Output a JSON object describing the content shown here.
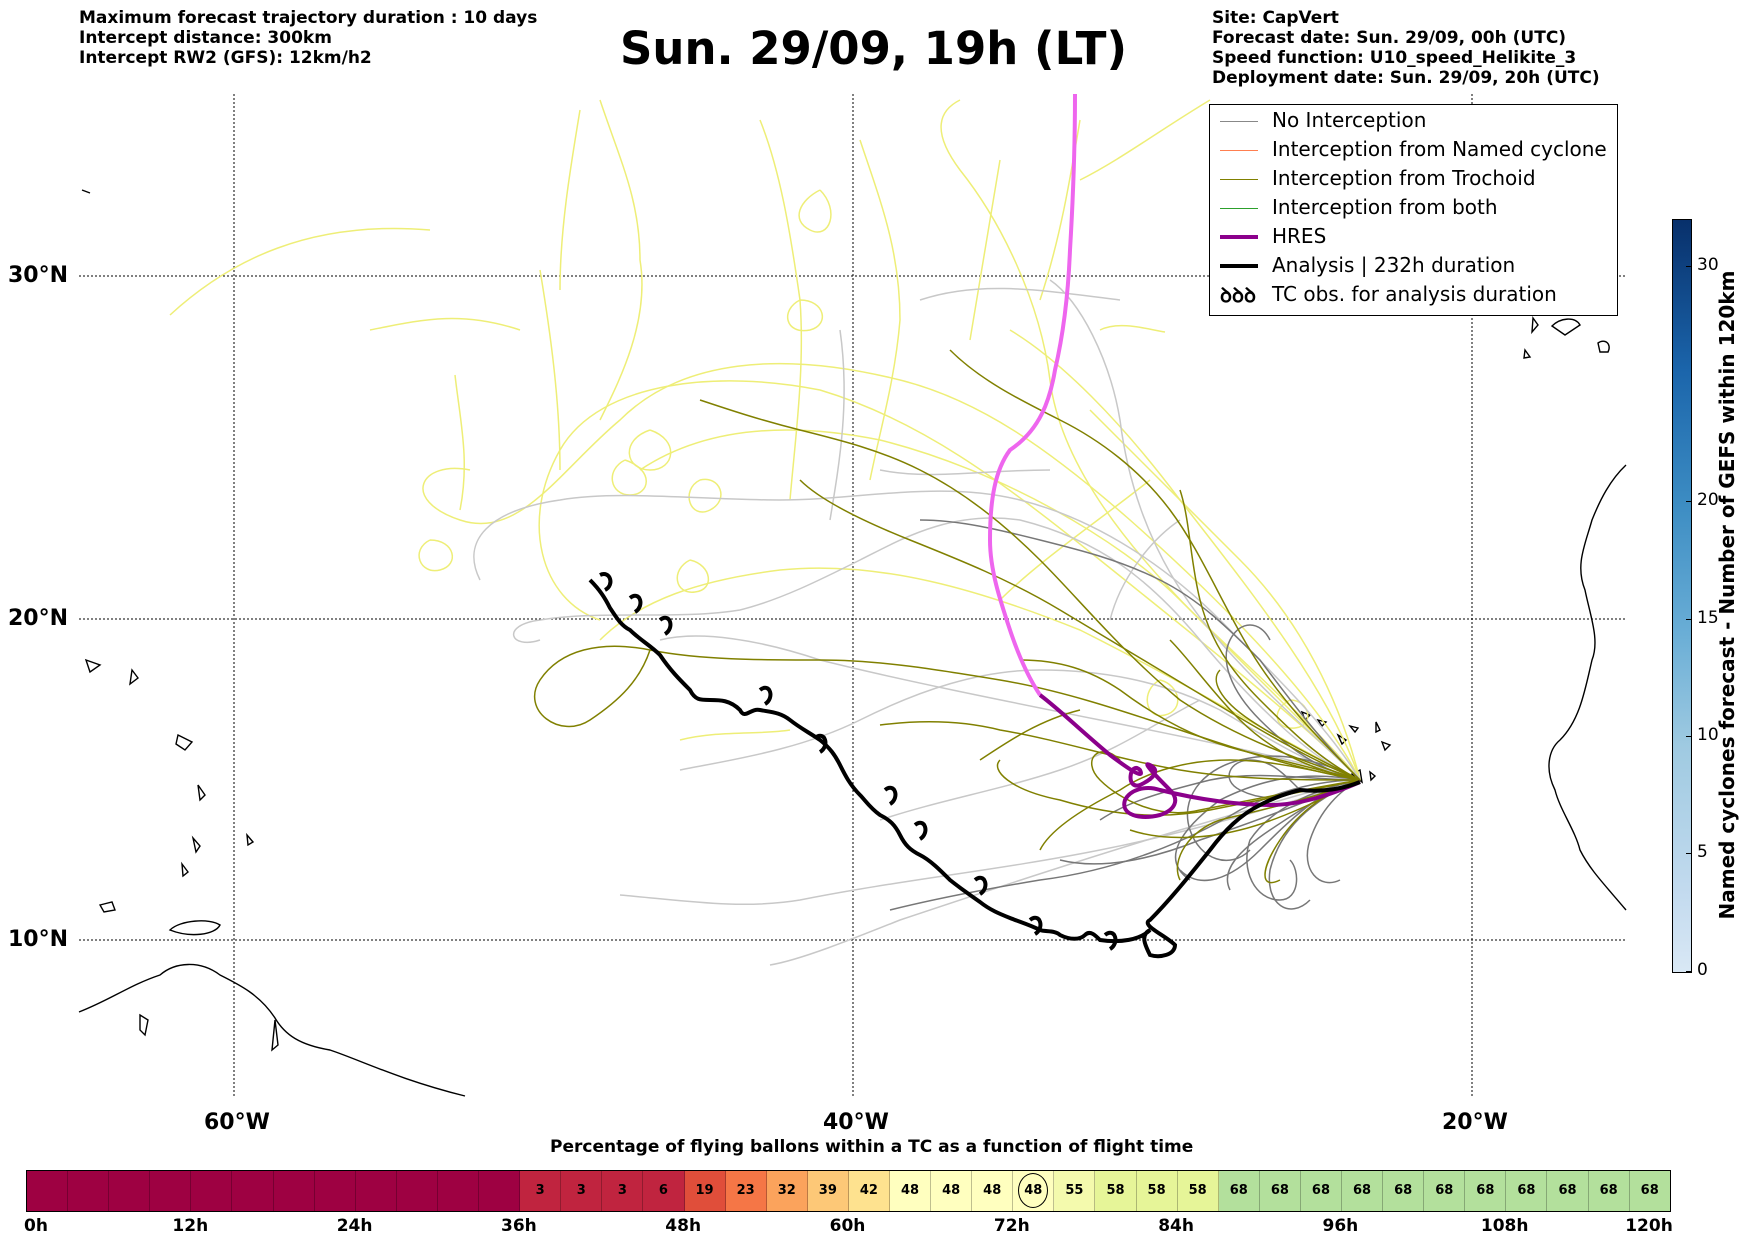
{
  "header_left": [
    "Maximum forecast trajectory duration : 10 days",
    "Intercept distance: 300km",
    "Intercept RW2 (GFS):  12km/h2"
  ],
  "title": "Sun. 29/09, 19h (LT)",
  "header_right": [
    "Site: CapVert",
    "Forecast date: Sun. 29/09, 00h (UTC)",
    "Speed function: U10_speed_Helikite_3",
    "Deployment date: Sun. 29/09, 20h (UTC)"
  ],
  "lat_labels": [
    "30°N",
    "20°N",
    "10°N"
  ],
  "lon_labels": [
    "60°W",
    "40°W",
    "20°W"
  ],
  "legend": [
    {
      "label": "No Interception",
      "color": "#888888",
      "width": 1.5
    },
    {
      "label": "Interception from Named cyclone",
      "color": "#ff7f50",
      "width": 1.5
    },
    {
      "label": "Interception from Trochoid",
      "color": "#808000",
      "width": 1.5
    },
    {
      "label": "Interception from both",
      "color": "#2ca02c",
      "width": 1.5
    },
    {
      "label": "HRES",
      "color": "#8b008b",
      "width": 4
    },
    {
      "label": "Analysis | 232h duration",
      "color": "#000000",
      "width": 4
    },
    {
      "label": "TC obs. for analysis duration",
      "color": "#000000",
      "width": 0,
      "symbol": "ꝺꝺꝺ"
    }
  ],
  "colorbar": {
    "label": "Named cyclones forecast - Number of GEFS within 120km",
    "ticks": [
      "0",
      "5",
      "10",
      "15",
      "20",
      "30"
    ]
  },
  "percentage_title": "Percentage of flying ballons within a TC as a function of flight time",
  "time_segments": [
    "",
    "",
    "",
    "",
    "",
    "",
    "",
    "",
    "",
    "",
    "",
    "",
    "3",
    "3",
    "3",
    "6",
    "19",
    "23",
    "32",
    "39",
    "42",
    "48",
    "48",
    "48",
    "48",
    "55",
    "58",
    "58",
    "58",
    "68",
    "68",
    "68",
    "68",
    "68",
    "68",
    "68",
    "68",
    "68",
    "68",
    "68"
  ],
  "time_labels": [
    "0h",
    "12h",
    "24h",
    "36h",
    "48h",
    "60h",
    "72h",
    "84h",
    "96h",
    "108h",
    "120h"
  ],
  "colors": {
    "analysis": "#000000",
    "hres": "#8b008b",
    "hres_early": "#ee66ee",
    "trochoid": "#808000",
    "yellow_tracks": "#eeee77",
    "grey_tracks": "#bbbbbb"
  }
}
